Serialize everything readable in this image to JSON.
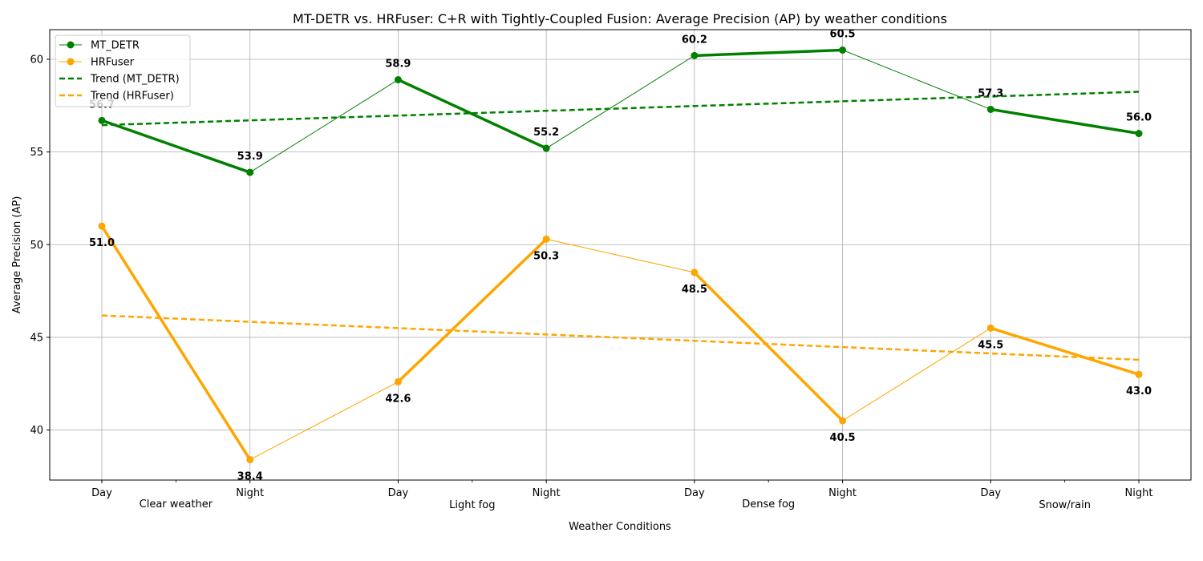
{
  "chart_data": {
    "type": "line",
    "title": "MT-DETR vs. HRFuser: C+R with Tightly-Coupled Fusion: Average Precision (AP) by weather conditions",
    "xlabel": "Weather Conditions",
    "ylabel": "Average Precision (AP)",
    "categories": [
      "Day",
      "Night",
      "Day",
      "Night",
      "Day",
      "Night",
      "Day",
      "Night"
    ],
    "groups": [
      "Clear weather",
      "Light fog",
      "Dense fog",
      "Snow/rain"
    ],
    "yticks": [
      40,
      45,
      50,
      55,
      60
    ],
    "ylim": [
      37.3,
      61.6
    ],
    "grid": true,
    "legend_position": "top-left",
    "series": [
      {
        "name": "MT_DETR",
        "color": "#008000",
        "values": [
          56.7,
          53.9,
          58.9,
          55.2,
          60.2,
          60.5,
          57.3,
          56.0
        ],
        "bold_segments": [
          [
            0,
            1
          ],
          [
            2,
            3
          ],
          [
            4,
            5
          ],
          [
            6,
            7
          ]
        ],
        "label_position": "above"
      },
      {
        "name": "HRFuser",
        "color": "#FFA500",
        "values": [
          51.0,
          38.4,
          42.6,
          50.3,
          48.5,
          40.5,
          45.5,
          43.0
        ],
        "bold_segments": [
          [
            0,
            1
          ],
          [
            2,
            3
          ],
          [
            4,
            5
          ],
          [
            6,
            7
          ]
        ],
        "label_position": "below"
      }
    ],
    "trends": [
      {
        "name": "Trend (MT_DETR)",
        "color": "#008000",
        "start": 56.45,
        "end": 58.25
      },
      {
        "name": "Trend (HRFuser)",
        "color": "#FFA500",
        "start": 46.18,
        "end": 43.79
      }
    ]
  }
}
